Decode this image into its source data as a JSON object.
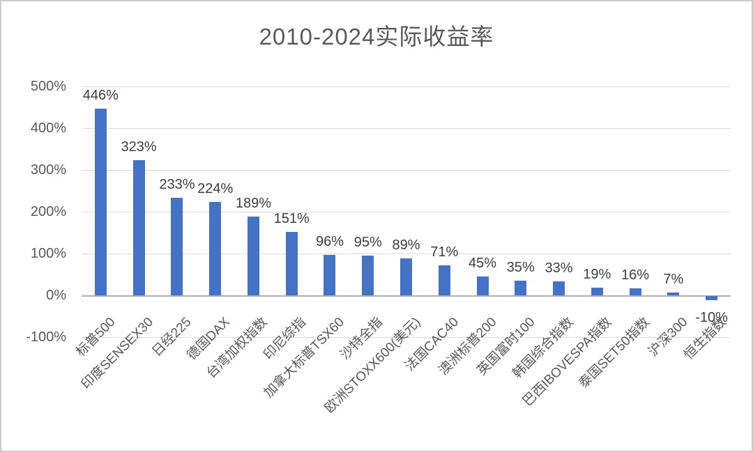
{
  "chart_data": {
    "type": "bar",
    "title": "2010-2024实际收益率",
    "categories": [
      "标普500",
      "印度SENSEX30",
      "日经225",
      "德国DAX",
      "台湾加权指数",
      "印尼综指",
      "加拿大标普TSX60",
      "沙特全指",
      "欧洲STOXX600(美元)",
      "法国CAC40",
      "澳洲标普200",
      "英国富时100",
      "韩国综合指数",
      "巴西IBOVESPA指数",
      "泰国SET50指数",
      "沪深300",
      "恒生指数"
    ],
    "values": [
      446,
      323,
      233,
      224,
      189,
      151,
      96,
      95,
      89,
      71,
      45,
      35,
      33,
      19,
      16,
      7,
      -10
    ],
    "data_labels": [
      "446%",
      "323%",
      "233%",
      "224%",
      "189%",
      "151%",
      "96%",
      "95%",
      "89%",
      "71%",
      "45%",
      "35%",
      "33%",
      "19%",
      "16%",
      "7%",
      "-10%"
    ],
    "xlabel": "",
    "ylabel": "",
    "yaxis": {
      "ticks": [
        "500%",
        "400%",
        "300%",
        "200%",
        "100%",
        "0%",
        "-100%"
      ],
      "min": -100,
      "max": 500,
      "step": 100
    },
    "grid": true,
    "legend": "none",
    "colors": {
      "bar": "#4472C4",
      "axis_text": "#595959",
      "data_label_text": "#3d3d3d",
      "title_text": "#595959",
      "gridline": "#d9d9d9",
      "zero_axis_line": "#adadad",
      "canvas_border": "#cbcbcb",
      "background": "#ffffff"
    }
  }
}
